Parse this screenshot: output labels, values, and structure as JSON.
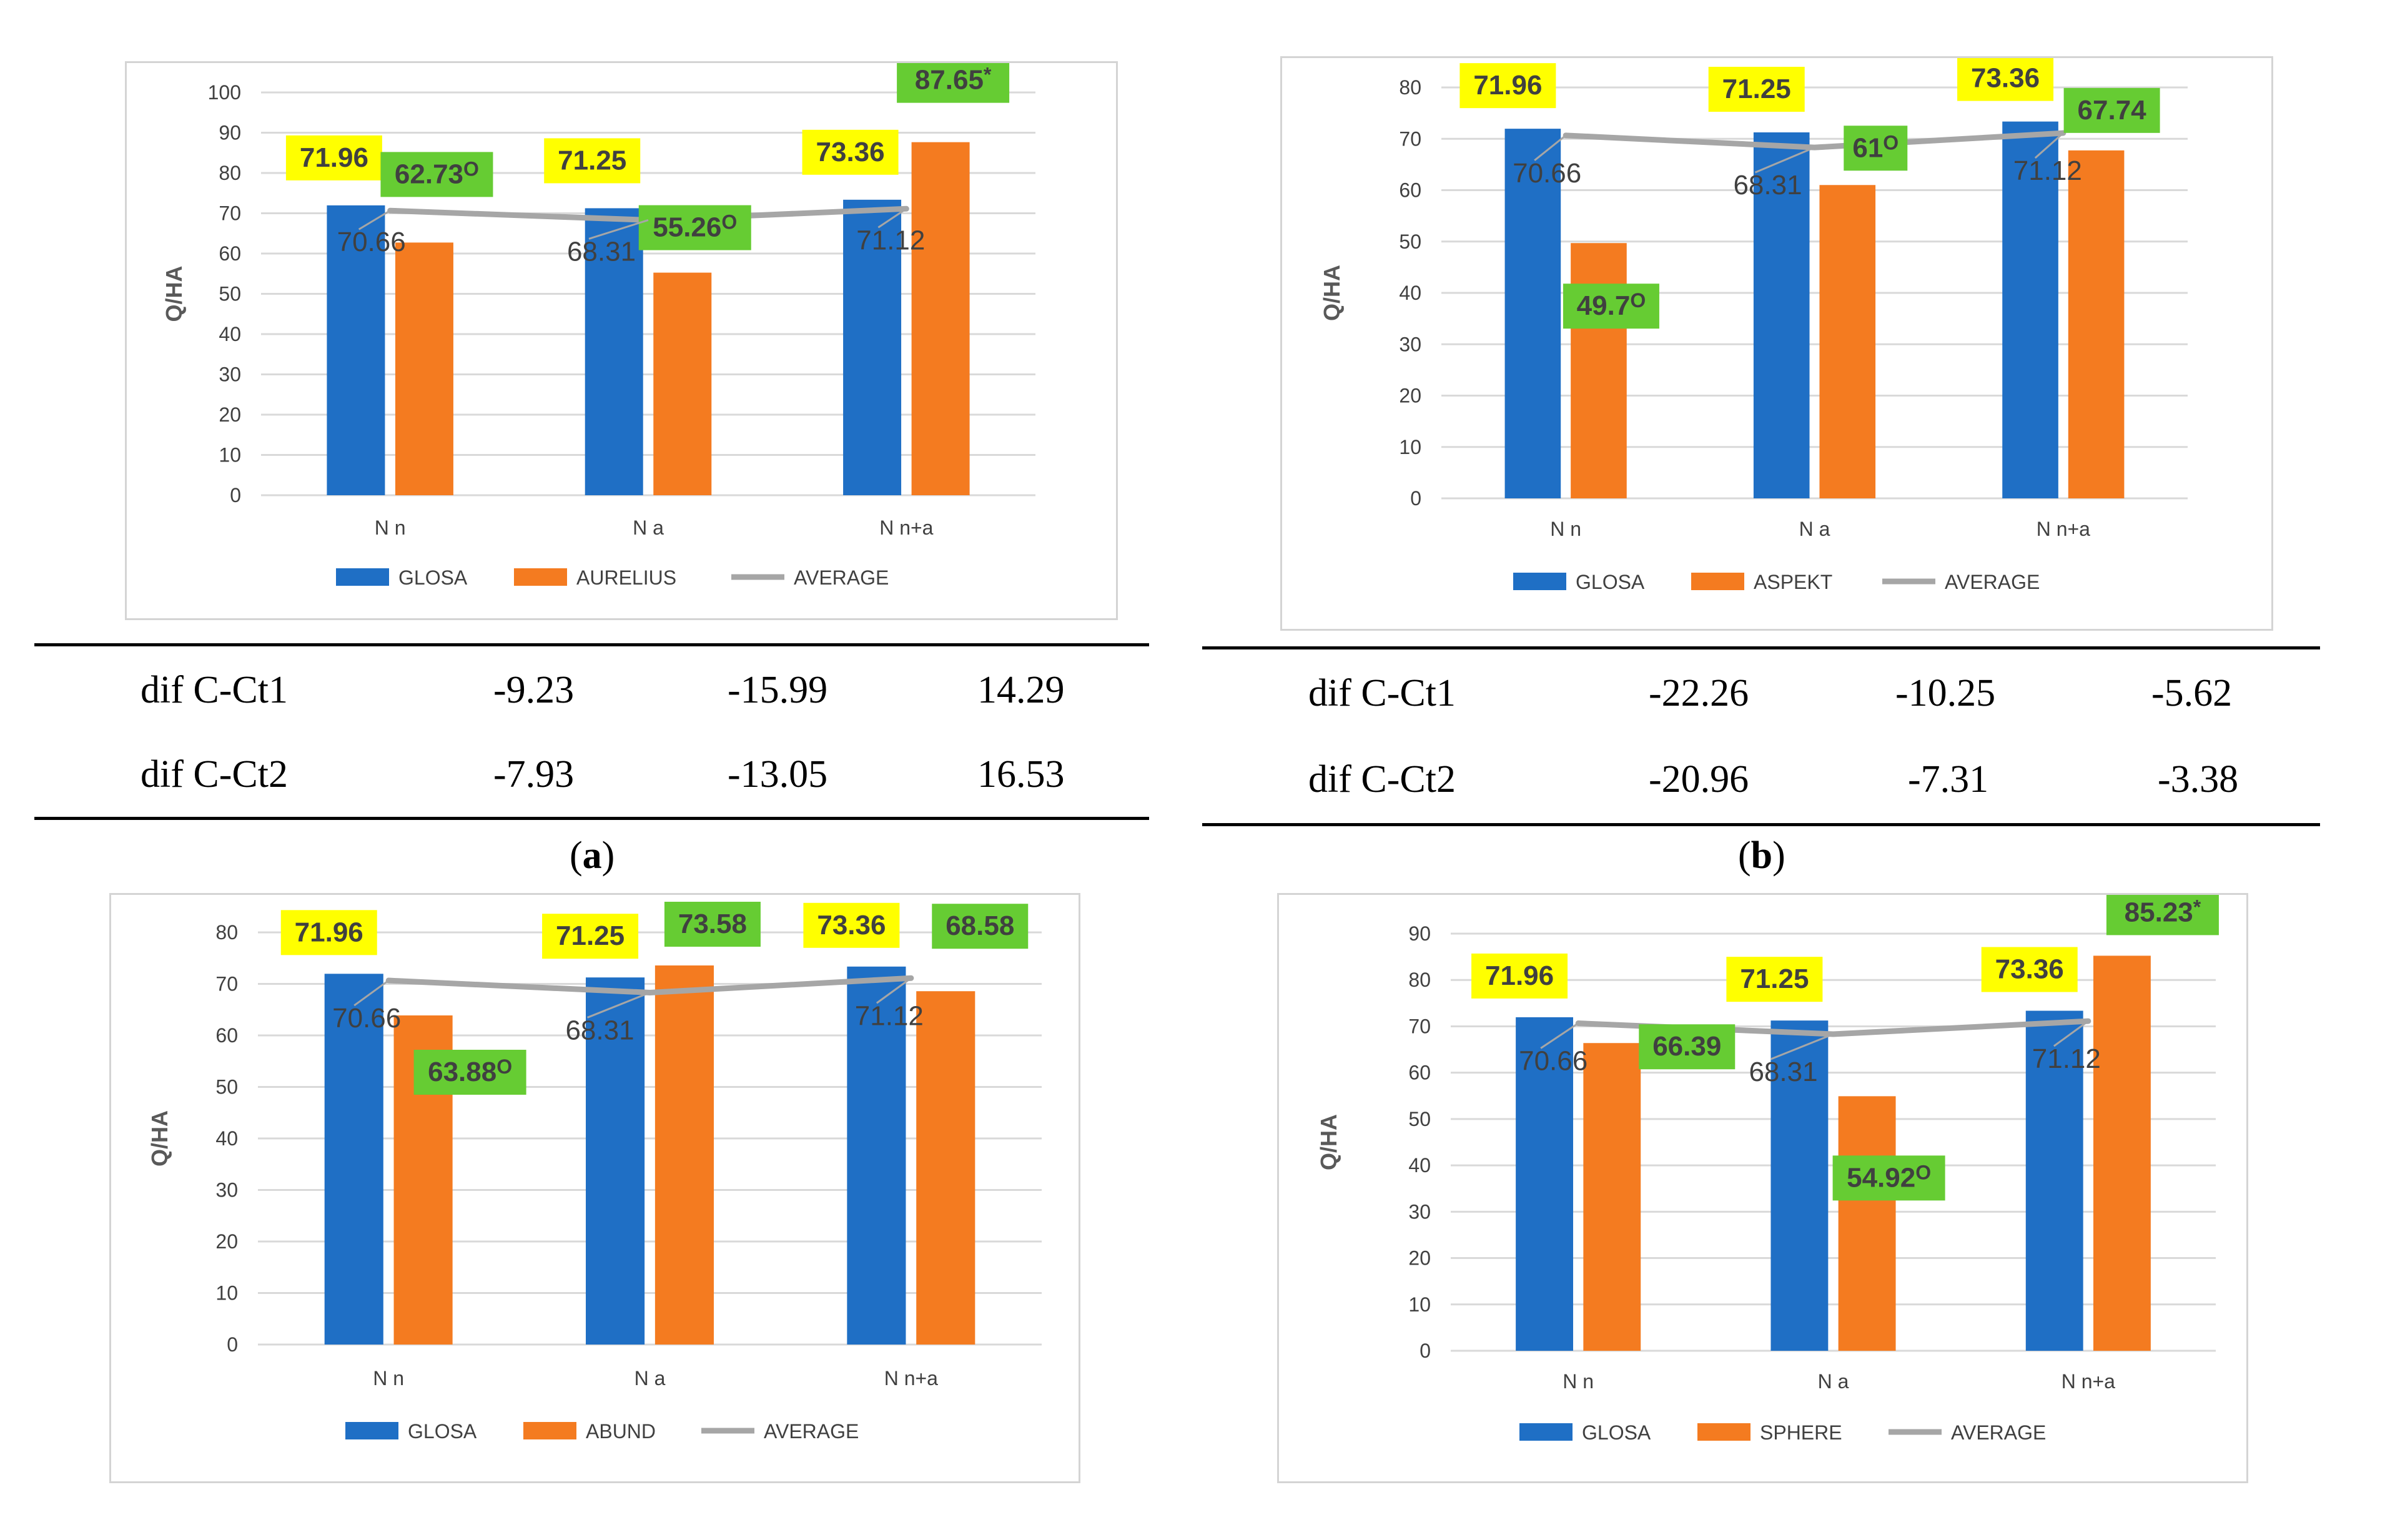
{
  "chart_data": [
    {
      "id": "a",
      "type": "bar",
      "ylabel": "Q/HA",
      "ylim": [
        0,
        100
      ],
      "ytick_step": 10,
      "categories": [
        "N n",
        "N a",
        "N n+a"
      ],
      "series": [
        {
          "name": "GLOSA",
          "values": [
            71.96,
            71.25,
            73.36
          ],
          "color": "#1f6fc5"
        },
        {
          "name": "AURELIUS",
          "values": [
            62.73,
            55.26,
            87.65
          ],
          "color": "#f47b20"
        },
        {
          "name": "AVERAGE",
          "type": "line",
          "values": [
            70.66,
            68.31,
            71.12
          ],
          "color": "#a6a6a6"
        }
      ],
      "glosa_labels": [
        "71.96",
        "71.25",
        "73.36"
      ],
      "variety_labels": [
        "62.73",
        "55.26",
        "87.65"
      ],
      "variety_marks": [
        "O",
        "O",
        "*"
      ],
      "average_labels": [
        "70.66",
        "68.31",
        "71.12"
      ],
      "legend": [
        "GLOSA",
        "AURELIUS",
        "AVERAGE"
      ],
      "table": {
        "rows": [
          {
            "label": "dif C-Ct1",
            "values": [
              "-9.23",
              "-15.99",
              "14.29"
            ]
          },
          {
            "label": "dif C-Ct2",
            "values": [
              "-7.93",
              "-13.05",
              "16.53"
            ]
          }
        ]
      },
      "caption": "a"
    },
    {
      "id": "b",
      "type": "bar",
      "ylabel": "Q/HA",
      "ylim": [
        0,
        80
      ],
      "ytick_step": 10,
      "categories": [
        "N n",
        "N a",
        "N n+a"
      ],
      "series": [
        {
          "name": "GLOSA",
          "values": [
            71.96,
            71.25,
            73.36
          ],
          "color": "#1f6fc5"
        },
        {
          "name": "ASPEKT",
          "values": [
            49.7,
            61,
            67.74
          ],
          "color": "#f47b20"
        },
        {
          "name": "AVERAGE",
          "type": "line",
          "values": [
            70.66,
            68.31,
            71.12
          ],
          "color": "#a6a6a6"
        }
      ],
      "glosa_labels": [
        "71.96",
        "71.25",
        "73.36"
      ],
      "variety_labels": [
        "49.7",
        "61",
        "67.74"
      ],
      "variety_marks": [
        "O",
        "O",
        ""
      ],
      "average_labels": [
        "70.66",
        "68.31",
        "71.12"
      ],
      "legend": [
        "GLOSA",
        "ASPEKT",
        "AVERAGE"
      ],
      "table": {
        "rows": [
          {
            "label": "dif C-Ct1",
            "values": [
              "-22.26",
              "-10.25",
              "-5.62"
            ]
          },
          {
            "label": "dif C-Ct2",
            "values": [
              "-20.96",
              "-7.31",
              "-3.38"
            ]
          }
        ]
      },
      "caption": "b"
    },
    {
      "id": "c",
      "type": "bar",
      "ylabel": "Q/HA",
      "ylim": [
        0,
        80
      ],
      "ytick_step": 10,
      "categories": [
        "N n",
        "N a",
        "N n+a"
      ],
      "series": [
        {
          "name": "GLOSA",
          "values": [
            71.96,
            71.25,
            73.36
          ],
          "color": "#1f6fc5"
        },
        {
          "name": "ABUND",
          "values": [
            63.88,
            73.58,
            68.58
          ],
          "color": "#f47b20"
        },
        {
          "name": "AVERAGE",
          "type": "line",
          "values": [
            70.66,
            68.31,
            71.12
          ],
          "color": "#a6a6a6"
        }
      ],
      "glosa_labels": [
        "71.96",
        "71.25",
        "73.36"
      ],
      "variety_labels": [
        "63.88",
        "73.58",
        "68.58"
      ],
      "variety_marks": [
        "O",
        "",
        ""
      ],
      "average_labels": [
        "70.66",
        "68.31",
        "71.12"
      ],
      "legend": [
        "GLOSA",
        "ABUND",
        "AVERAGE"
      ]
    },
    {
      "id": "d",
      "type": "bar",
      "ylabel": "Q/HA",
      "ylim": [
        0,
        90
      ],
      "ytick_step": 10,
      "categories": [
        "N n",
        "N a",
        "N n+a"
      ],
      "series": [
        {
          "name": "GLOSA",
          "values": [
            71.96,
            71.25,
            73.36
          ],
          "color": "#1f6fc5"
        },
        {
          "name": "SPHERE",
          "values": [
            66.39,
            54.92,
            85.23
          ],
          "color": "#f47b20"
        },
        {
          "name": "AVERAGE",
          "type": "line",
          "values": [
            70.66,
            68.31,
            71.12
          ],
          "color": "#a6a6a6"
        }
      ],
      "glosa_labels": [
        "71.96",
        "71.25",
        "73.36"
      ],
      "variety_labels": [
        "66.39",
        "54.92",
        "85.23"
      ],
      "variety_marks": [
        "",
        "O",
        "*"
      ],
      "average_labels": [
        "70.66",
        "68.31",
        "71.12"
      ],
      "legend": [
        "GLOSA",
        "SPHERE",
        "AVERAGE"
      ]
    }
  ],
  "colors": {
    "glosa": "#1f6fc5",
    "variety": "#f47b20",
    "average": "#a6a6a6",
    "label_yellow": "#ffff00",
    "label_green": "#66cc33",
    "gridline": "#d9d9d9"
  }
}
